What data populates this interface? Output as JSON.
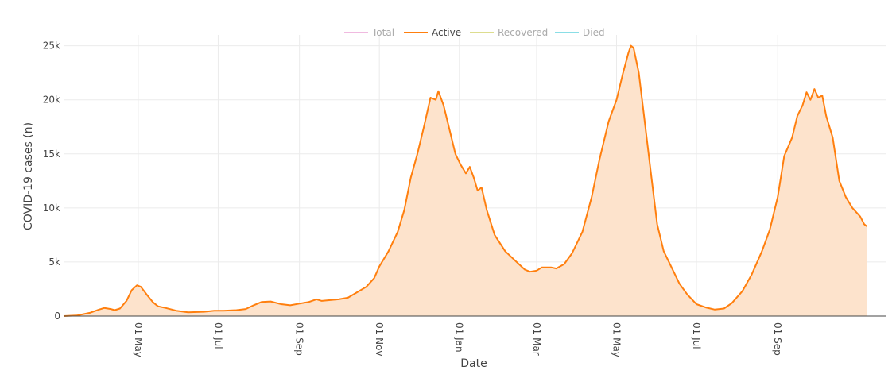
{
  "chart_data": {
    "type": "area",
    "title": "",
    "xlabel": "Date",
    "ylabel": "COVID-19 cases (n)",
    "grid": true,
    "legend_position": "top-center",
    "legend": [
      {
        "name": "Total",
        "color": "#e377c2",
        "active": false
      },
      {
        "name": "Active",
        "color": "#ff7f0e",
        "active": true
      },
      {
        "name": "Recovered",
        "color": "#bcbd22",
        "active": false
      },
      {
        "name": "Died",
        "color": "#17becf",
        "active": false
      }
    ],
    "xlim": [
      "2020-03-05",
      "2021-11-23"
    ],
    "ylim": [
      0,
      26000
    ],
    "x_ticks": [
      {
        "date": "2020-05-01",
        "label": "01 May"
      },
      {
        "date": "2020-07-01",
        "label": "01 Jul"
      },
      {
        "date": "2020-09-01",
        "label": "01 Sep"
      },
      {
        "date": "2020-11-01",
        "label": "01 Nov"
      },
      {
        "date": "2021-01-01",
        "label": "01 Jan"
      },
      {
        "date": "2021-03-01",
        "label": "01 Mar"
      },
      {
        "date": "2021-05-01",
        "label": "01 May"
      },
      {
        "date": "2021-07-01",
        "label": "01 Jul"
      },
      {
        "date": "2021-09-01",
        "label": "01 Sep"
      }
    ],
    "y_ticks": [
      {
        "value": 0,
        "label": "0"
      },
      {
        "value": 5000,
        "label": "5k"
      },
      {
        "value": 10000,
        "label": "10k"
      },
      {
        "value": 15000,
        "label": "15k"
      },
      {
        "value": 20000,
        "label": "20k"
      },
      {
        "value": 25000,
        "label": "25k"
      }
    ],
    "series": [
      {
        "name": "Active",
        "color": "#ff7f0e",
        "fill": "#fde3cc",
        "points": [
          [
            "2020-03-05",
            0
          ],
          [
            "2020-03-15",
            50
          ],
          [
            "2020-03-25",
            300
          ],
          [
            "2020-04-01",
            600
          ],
          [
            "2020-04-05",
            750
          ],
          [
            "2020-04-10",
            650
          ],
          [
            "2020-04-13",
            550
          ],
          [
            "2020-04-17",
            700
          ],
          [
            "2020-04-22",
            1400
          ],
          [
            "2020-04-26",
            2400
          ],
          [
            "2020-04-30",
            2850
          ],
          [
            "2020-05-03",
            2700
          ],
          [
            "2020-05-08",
            1900
          ],
          [
            "2020-05-12",
            1300
          ],
          [
            "2020-05-16",
            900
          ],
          [
            "2020-05-22",
            750
          ],
          [
            "2020-05-30",
            500
          ],
          [
            "2020-06-08",
            350
          ],
          [
            "2020-06-20",
            400
          ],
          [
            "2020-06-28",
            500
          ],
          [
            "2020-07-05",
            500
          ],
          [
            "2020-07-15",
            550
          ],
          [
            "2020-07-22",
            650
          ],
          [
            "2020-07-28",
            1000
          ],
          [
            "2020-08-03",
            1300
          ],
          [
            "2020-08-10",
            1350
          ],
          [
            "2020-08-18",
            1100
          ],
          [
            "2020-08-25",
            1000
          ],
          [
            "2020-09-01",
            1150
          ],
          [
            "2020-09-08",
            1300
          ],
          [
            "2020-09-14",
            1550
          ],
          [
            "2020-09-18",
            1400
          ],
          [
            "2020-09-22",
            1450
          ],
          [
            "2020-10-01",
            1550
          ],
          [
            "2020-10-08",
            1700
          ],
          [
            "2020-10-15",
            2200
          ],
          [
            "2020-10-22",
            2700
          ],
          [
            "2020-10-28",
            3500
          ],
          [
            "2020-11-01",
            4600
          ],
          [
            "2020-11-08",
            6000
          ],
          [
            "2020-11-15",
            7800
          ],
          [
            "2020-11-20",
            9800
          ],
          [
            "2020-11-25",
            12800
          ],
          [
            "2020-11-30",
            15000
          ],
          [
            "2020-12-05",
            17500
          ],
          [
            "2020-12-10",
            20200
          ],
          [
            "2020-12-14",
            20000
          ],
          [
            "2020-12-16",
            20800
          ],
          [
            "2020-12-20",
            19500
          ],
          [
            "2020-12-25",
            17000
          ],
          [
            "2020-12-29",
            15000
          ],
          [
            "2021-01-02",
            14000
          ],
          [
            "2021-01-06",
            13200
          ],
          [
            "2021-01-09",
            13800
          ],
          [
            "2021-01-12",
            12800
          ],
          [
            "2021-01-15",
            11600
          ],
          [
            "2021-01-18",
            11900
          ],
          [
            "2021-01-22",
            9800
          ],
          [
            "2021-01-28",
            7500
          ],
          [
            "2021-02-05",
            6000
          ],
          [
            "2021-02-12",
            5200
          ],
          [
            "2021-02-20",
            4300
          ],
          [
            "2021-02-24",
            4100
          ],
          [
            "2021-03-01",
            4200
          ],
          [
            "2021-03-05",
            4500
          ],
          [
            "2021-03-12",
            4500
          ],
          [
            "2021-03-16",
            4400
          ],
          [
            "2021-03-22",
            4800
          ],
          [
            "2021-03-28",
            5800
          ],
          [
            "2021-04-05",
            7800
          ],
          [
            "2021-04-12",
            11000
          ],
          [
            "2021-04-18",
            14500
          ],
          [
            "2021-04-25",
            18000
          ],
          [
            "2021-05-01",
            20000
          ],
          [
            "2021-05-06",
            22500
          ],
          [
            "2021-05-10",
            24300
          ],
          [
            "2021-05-12",
            25000
          ],
          [
            "2021-05-14",
            24800
          ],
          [
            "2021-05-18",
            22500
          ],
          [
            "2021-05-22",
            18500
          ],
          [
            "2021-05-27",
            13500
          ],
          [
            "2021-06-01",
            8500
          ],
          [
            "2021-06-06",
            6000
          ],
          [
            "2021-06-12",
            4500
          ],
          [
            "2021-06-18",
            3000
          ],
          [
            "2021-06-24",
            2000
          ],
          [
            "2021-07-01",
            1100
          ],
          [
            "2021-07-08",
            800
          ],
          [
            "2021-07-15",
            600
          ],
          [
            "2021-07-22",
            700
          ],
          [
            "2021-07-28",
            1200
          ],
          [
            "2021-08-05",
            2300
          ],
          [
            "2021-08-12",
            3800
          ],
          [
            "2021-08-20",
            6000
          ],
          [
            "2021-08-26",
            8000
          ],
          [
            "2021-09-01",
            11000
          ],
          [
            "2021-09-06",
            14800
          ],
          [
            "2021-09-12",
            16500
          ],
          [
            "2021-09-16",
            18500
          ],
          [
            "2021-09-20",
            19500
          ],
          [
            "2021-09-23",
            20700
          ],
          [
            "2021-09-26",
            20000
          ],
          [
            "2021-09-29",
            21000
          ],
          [
            "2021-10-02",
            20200
          ],
          [
            "2021-10-05",
            20400
          ],
          [
            "2021-10-08",
            18500
          ],
          [
            "2021-10-13",
            16500
          ],
          [
            "2021-10-18",
            12500
          ],
          [
            "2021-10-23",
            11000
          ],
          [
            "2021-10-28",
            10000
          ],
          [
            "2021-11-03",
            9200
          ],
          [
            "2021-11-06",
            8500
          ],
          [
            "2021-11-08",
            8300
          ]
        ]
      }
    ]
  }
}
